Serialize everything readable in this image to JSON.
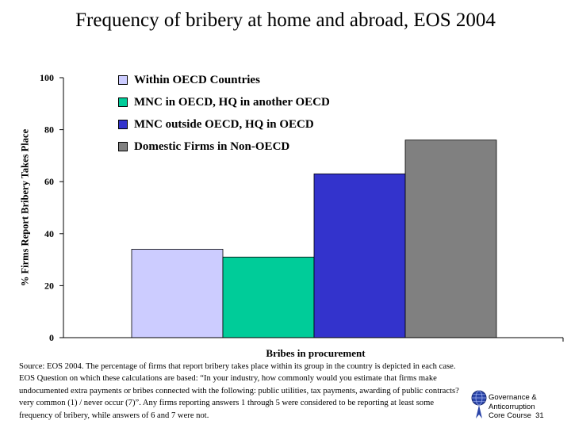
{
  "title": "Frequency of bribery at home and abroad, EOS 2004",
  "chart_data": {
    "type": "bar",
    "categories": [
      "Bribes in procurement"
    ],
    "xlabel": "Bribes in procurement",
    "ylabel": "% Firms Report Bribery Takes Place",
    "ylim": [
      0,
      100
    ],
    "yticks": [
      0,
      20,
      40,
      60,
      80,
      100
    ],
    "grid": false,
    "legend": "top",
    "series": [
      {
        "name": "Within OECD Countries",
        "values": [
          34
        ],
        "color": "#ccccff"
      },
      {
        "name": "MNC in OECD, HQ in another OECD",
        "values": [
          31
        ],
        "color": "#00cc99"
      },
      {
        "name": "MNC outside OECD, HQ in OECD",
        "values": [
          63
        ],
        "color": "#3333cc"
      },
      {
        "name": "Domestic Firms in Non-OECD",
        "values": [
          76
        ],
        "color": "#808080"
      }
    ]
  },
  "source_text": "Source: EOS 2004. The percentage of firms that report bribery takes place within its group in the country is depicted in each case.  EOS Question on which these calculations are based: “In your industry,  how commonly would you estimate that firms make undocumented extra payments or bribes connected with the following: public utilities, tax payments, awarding of public contracts?  very common (1) / never occur (7)”. Any firms reporting answers 1 through 5 were considered to be reporting at least some frequency of bribery, while answers of 6 and 7 were not.",
  "footer": {
    "line1": "Governance &",
    "line2": "Anticorruption",
    "line3": "Core Course",
    "slide_number": "31"
  }
}
